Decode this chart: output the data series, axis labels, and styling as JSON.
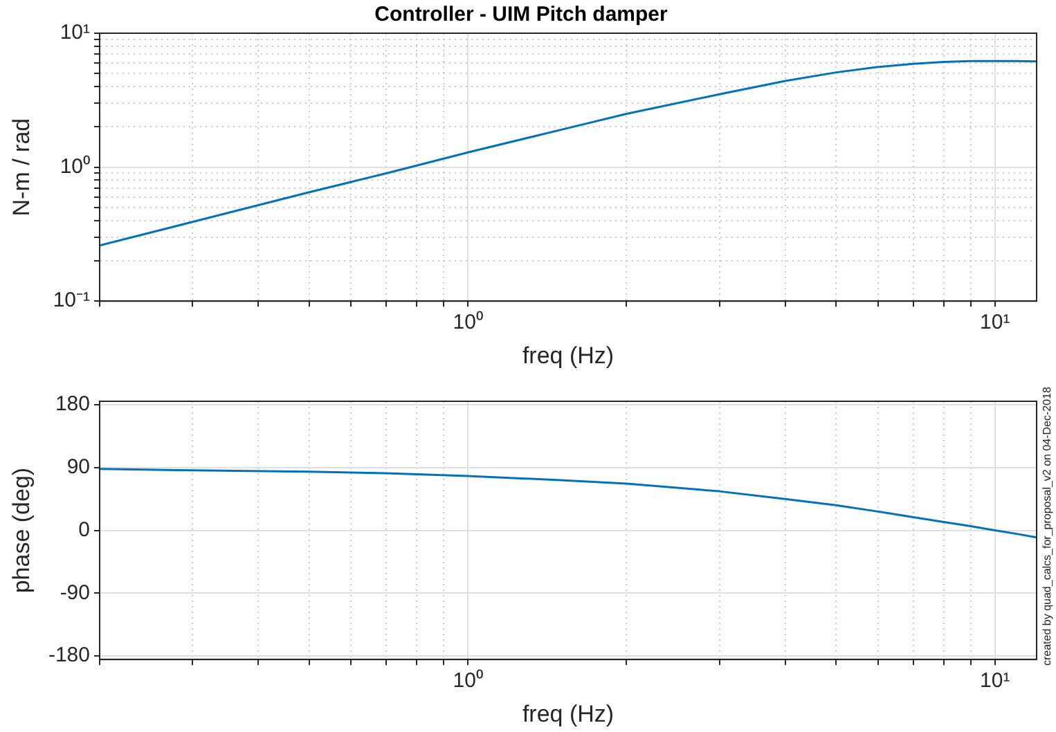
{
  "chart_data": [
    {
      "type": "line",
      "title": "Controller - UIM Pitch damper",
      "xlabel": "freq (Hz)",
      "ylabel": "N-m / rad",
      "log": "xy",
      "grid": true,
      "marker": "none",
      "line_style": "solid",
      "x": [
        0.2,
        0.3,
        0.5,
        0.7,
        1,
        1.5,
        2,
        3,
        4,
        5,
        6,
        7,
        8,
        9,
        10,
        11,
        12
      ],
      "series": [
        {
          "color": "#0072bd",
          "values": [
            0.26,
            0.39,
            0.65,
            0.9,
            1.29,
            1.9,
            2.5,
            3.5,
            4.4,
            5.1,
            5.6,
            5.9,
            6.1,
            6.2,
            6.2,
            6.2,
            6.15
          ]
        }
      ],
      "xlim": [
        0.2,
        12
      ],
      "xticks": [
        {
          "value": 0.2,
          "label": null
        },
        {
          "value": 0.3,
          "label": null
        },
        {
          "value": 0.4,
          "label": null
        },
        {
          "value": 0.5,
          "label": null
        },
        {
          "value": 0.6,
          "label": null
        },
        {
          "value": 0.7,
          "label": null
        },
        {
          "value": 0.8,
          "label": null
        },
        {
          "value": 0.9,
          "label": null
        },
        {
          "value": 1,
          "label": "10⁰"
        },
        {
          "value": 2,
          "label": null
        },
        {
          "value": 3,
          "label": null
        },
        {
          "value": 4,
          "label": null
        },
        {
          "value": 5,
          "label": null
        },
        {
          "value": 6,
          "label": null
        },
        {
          "value": 7,
          "label": null
        },
        {
          "value": 8,
          "label": null
        },
        {
          "value": 9,
          "label": null
        },
        {
          "value": 10,
          "label": "10¹"
        }
      ],
      "ylim": [
        0.1,
        10
      ],
      "yticks": [
        {
          "value": 0.1,
          "label": "10⁻¹"
        },
        {
          "value": 0.2,
          "label": null
        },
        {
          "value": 0.3,
          "label": null
        },
        {
          "value": 0.4,
          "label": null
        },
        {
          "value": 0.5,
          "label": null
        },
        {
          "value": 0.6,
          "label": null
        },
        {
          "value": 0.7,
          "label": null
        },
        {
          "value": 0.8,
          "label": null
        },
        {
          "value": 0.9,
          "label": null
        },
        {
          "value": 1,
          "label": "10⁰"
        },
        {
          "value": 2,
          "label": null
        },
        {
          "value": 3,
          "label": null
        },
        {
          "value": 4,
          "label": null
        },
        {
          "value": 5,
          "label": null
        },
        {
          "value": 6,
          "label": null
        },
        {
          "value": 7,
          "label": null
        },
        {
          "value": 8,
          "label": null
        },
        {
          "value": 9,
          "label": null
        },
        {
          "value": 10,
          "label": "10¹"
        }
      ]
    },
    {
      "type": "line",
      "xlabel": "freq (Hz)",
      "ylabel": "phase (deg)",
      "log": "x",
      "grid": true,
      "marker": "none",
      "line_style": "solid",
      "annotations": [
        "created by quad_calcs_for_proposal_v2 on 04-Dec-2018"
      ],
      "x": [
        0.2,
        0.3,
        0.5,
        0.7,
        1,
        1.5,
        2,
        3,
        4,
        5,
        6,
        7,
        8,
        9,
        10,
        11,
        12
      ],
      "series": [
        {
          "color": "#0072bd",
          "values": [
            88,
            86,
            84,
            82,
            78,
            72,
            67,
            56,
            45,
            36,
            27,
            19,
            12,
            6,
            0,
            -5,
            -10
          ]
        }
      ],
      "xlim": [
        0.2,
        12
      ],
      "xticks": [
        {
          "value": 0.2,
          "label": null
        },
        {
          "value": 0.3,
          "label": null
        },
        {
          "value": 0.4,
          "label": null
        },
        {
          "value": 0.5,
          "label": null
        },
        {
          "value": 0.6,
          "label": null
        },
        {
          "value": 0.7,
          "label": null
        },
        {
          "value": 0.8,
          "label": null
        },
        {
          "value": 0.9,
          "label": null
        },
        {
          "value": 1,
          "label": "10⁰"
        },
        {
          "value": 2,
          "label": null
        },
        {
          "value": 3,
          "label": null
        },
        {
          "value": 4,
          "label": null
        },
        {
          "value": 5,
          "label": null
        },
        {
          "value": 6,
          "label": null
        },
        {
          "value": 7,
          "label": null
        },
        {
          "value": 8,
          "label": null
        },
        {
          "value": 9,
          "label": null
        },
        {
          "value": 10,
          "label": "10¹"
        }
      ],
      "ylim": [
        -185,
        185
      ],
      "yticks": [
        -180,
        -90,
        0,
        90,
        180
      ]
    }
  ]
}
